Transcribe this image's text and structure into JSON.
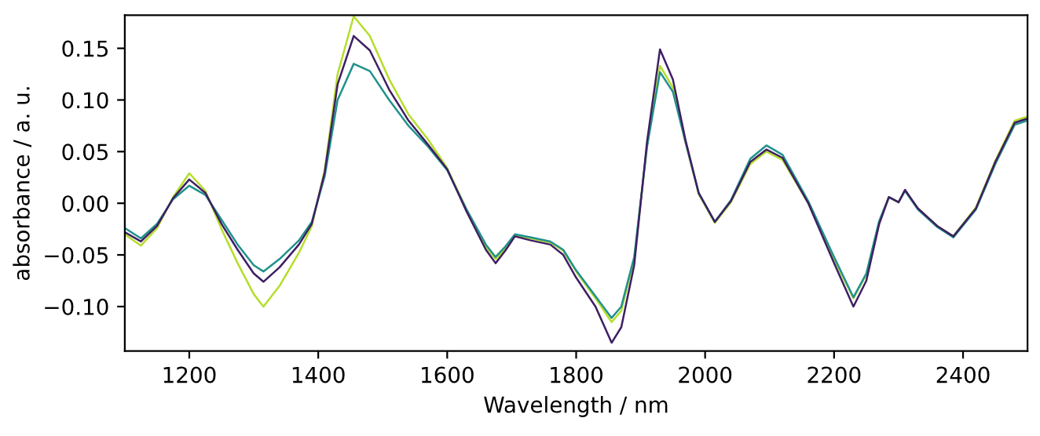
{
  "chart_data": {
    "type": "line",
    "xlabel": "Wavelength / nm",
    "ylabel": "absorbance / a. u.",
    "x": [
      1100,
      1125,
      1150,
      1175,
      1200,
      1225,
      1250,
      1275,
      1300,
      1315,
      1340,
      1370,
      1390,
      1410,
      1430,
      1455,
      1480,
      1510,
      1540,
      1570,
      1600,
      1630,
      1660,
      1675,
      1690,
      1705,
      1730,
      1760,
      1780,
      1800,
      1830,
      1855,
      1870,
      1890,
      1910,
      1930,
      1950,
      1970,
      1990,
      2015,
      2040,
      2070,
      2095,
      2120,
      2160,
      2200,
      2230,
      2250,
      2270,
      2285,
      2300,
      2310,
      2330,
      2360,
      2385,
      2420,
      2450,
      2480,
      2500
    ],
    "series": [
      {
        "color": "#b5de2b",
        "values": [
          -0.03,
          -0.041,
          -0.024,
          0.006,
          0.029,
          0.012,
          -0.025,
          -0.058,
          -0.088,
          -0.1,
          -0.08,
          -0.048,
          -0.022,
          0.032,
          0.125,
          0.181,
          0.162,
          0.12,
          0.086,
          0.062,
          0.034,
          -0.006,
          -0.042,
          -0.054,
          -0.044,
          -0.031,
          -0.034,
          -0.038,
          -0.046,
          -0.066,
          -0.092,
          -0.115,
          -0.104,
          -0.054,
          0.056,
          0.133,
          0.112,
          0.058,
          0.009,
          -0.019,
          0.001,
          0.038,
          0.05,
          0.042,
          0.0,
          -0.054,
          -0.092,
          -0.069,
          -0.018,
          0.006,
          0.001,
          0.012,
          -0.005,
          -0.022,
          -0.032,
          -0.004,
          0.041,
          0.08,
          0.084
        ]
      },
      {
        "color": "#21918c",
        "values": [
          -0.024,
          -0.034,
          -0.02,
          0.004,
          0.017,
          0.008,
          -0.016,
          -0.04,
          -0.06,
          -0.066,
          -0.054,
          -0.036,
          -0.018,
          0.026,
          0.1,
          0.135,
          0.128,
          0.1,
          0.075,
          0.055,
          0.032,
          -0.006,
          -0.04,
          -0.052,
          -0.042,
          -0.03,
          -0.033,
          -0.037,
          -0.045,
          -0.065,
          -0.09,
          -0.111,
          -0.1,
          -0.052,
          0.055,
          0.127,
          0.108,
          0.058,
          0.01,
          -0.018,
          0.003,
          0.043,
          0.056,
          0.047,
          0.002,
          -0.052,
          -0.091,
          -0.068,
          -0.017,
          0.006,
          0.001,
          0.012,
          -0.006,
          -0.023,
          -0.033,
          -0.006,
          0.038,
          0.076,
          0.08
        ]
      },
      {
        "color": "#3e1f63",
        "values": [
          -0.028,
          -0.037,
          -0.022,
          0.005,
          0.023,
          0.01,
          -0.02,
          -0.045,
          -0.068,
          -0.076,
          -0.062,
          -0.04,
          -0.02,
          0.03,
          0.115,
          0.162,
          0.148,
          0.11,
          0.08,
          0.057,
          0.033,
          -0.008,
          -0.045,
          -0.058,
          -0.046,
          -0.032,
          -0.036,
          -0.04,
          -0.05,
          -0.072,
          -0.1,
          -0.135,
          -0.12,
          -0.06,
          0.06,
          0.149,
          0.12,
          0.06,
          0.01,
          -0.018,
          0.002,
          0.04,
          0.052,
          0.044,
          0.0,
          -0.058,
          -0.1,
          -0.075,
          -0.02,
          0.006,
          0.001,
          0.013,
          -0.005,
          -0.022,
          -0.032,
          -0.005,
          0.04,
          0.078,
          0.082
        ]
      }
    ],
    "xlim": [
      1100,
      2500
    ],
    "xticks": [
      1200,
      1400,
      1600,
      1800,
      2000,
      2200,
      2400
    ],
    "ylim": [
      -0.143,
      0.182
    ],
    "yticks": [
      {
        "value": -0.1,
        "label": "−0.10"
      },
      {
        "value": -0.05,
        "label": "−0.05"
      },
      {
        "value": 0,
        "label": "0.00"
      },
      {
        "value": 0.05,
        "label": "0.05"
      },
      {
        "value": 0.1,
        "label": "0.10"
      },
      {
        "value": 0.15,
        "label": "0.15"
      }
    ],
    "grid": false
  }
}
